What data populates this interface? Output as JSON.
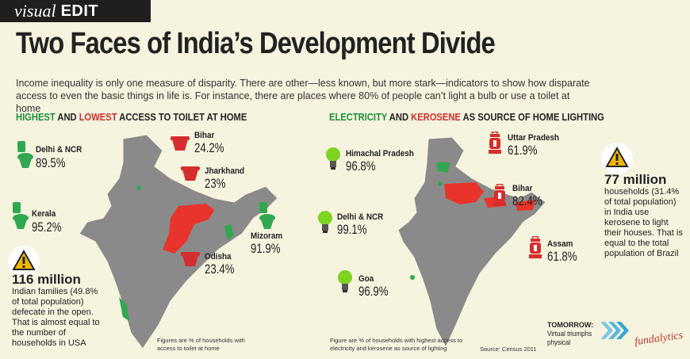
{
  "masthead": {
    "visual": "visual",
    "edit": "EDIT"
  },
  "title": "Two Faces of India’s Development Divide",
  "intro": "Income inequality is only one measure of disparity. There are other—less known, but more stark—indicators to show how disparate access to even the basic things in life is. For instance, there are places where 80% of people can’t light a bulb or use a toilet at home",
  "left": {
    "heading": {
      "highest": "HIGHEST",
      "and": " AND ",
      "lowest": "LOWEST",
      "rest": " ACCESS TO TOILET AT HOME"
    },
    "items": [
      {
        "name": "Delhi & NCR",
        "value": "89.5%",
        "color": "#1b8f3a"
      },
      {
        "name": "Kerala",
        "value": "95.2%",
        "color": "#1b8f3a"
      },
      {
        "name": "Bihar",
        "value": "24.2%",
        "color": "#d62e2e"
      },
      {
        "name": "Jharkhand",
        "value": "23%",
        "color": "#d62e2e"
      },
      {
        "name": "Odisha",
        "value": "23.4%",
        "color": "#d62e2e"
      },
      {
        "name": "Mizoram",
        "value": "91.9%",
        "color": "#1b8f3a"
      }
    ],
    "stat": {
      "big": "116 million",
      "text": "Indian families (49.8% of total population) defecate in the open. That is almost equal to the number of households in USA"
    },
    "note": "Figures are % of households with access to toilet at home"
  },
  "right": {
    "heading": {
      "highest": "ELECTRICITY",
      "and": " AND ",
      "lowest": "KEROSENE",
      "rest": " AS SOURCE OF HOME LIGHTING"
    },
    "items": [
      {
        "name": "Himachal Pradesh",
        "value": "96.8%",
        "color": "#1b8f3a"
      },
      {
        "name": "Delhi & NCR",
        "value": "99.1%",
        "color": "#1b8f3a"
      },
      {
        "name": "Goa",
        "value": "96.9%",
        "color": "#1b8f3a"
      },
      {
        "name": "Uttar Pradesh",
        "value": "61.9%",
        "color": "#d62e2e"
      },
      {
        "name": "Bihar",
        "value": "82.4%",
        "color": "#d62e2e"
      },
      {
        "name": "Assam",
        "value": "61.8%",
        "color": "#d62e2e"
      }
    ],
    "stat": {
      "big": "77 million",
      "text": "households (31.4% of total population) in India use kerosene to light their houses. That is equal to the total population of Brazil"
    },
    "note": "Figure are % of households with highest access to electricity and kerosene as source of lighting",
    "source": "Source: Census 2011"
  },
  "footer": {
    "tomorrow": "TOMORROW:",
    "next": "Virtual triumphs physical",
    "logo": "fundalytics"
  },
  "colors": {
    "green": "#1b8f3a",
    "red": "#d62e2e",
    "map": "#8a8a8a",
    "background": "#f6f3df"
  }
}
